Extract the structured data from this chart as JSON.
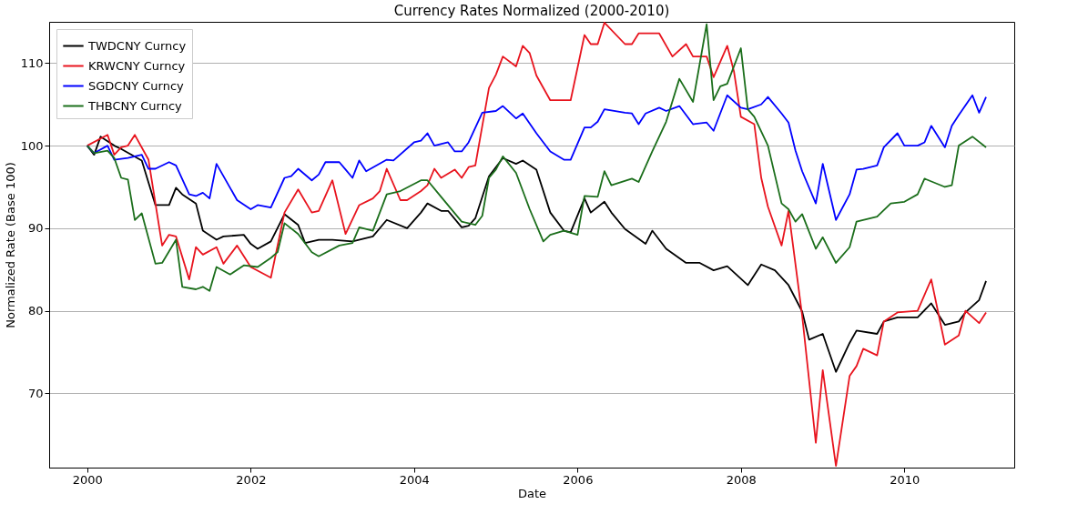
{
  "chart_data": {
    "type": "line",
    "title": "Currency Rates Normalized (2000-2010)",
    "xlabel": "Date",
    "ylabel": "Normalized Rate (Base 100)",
    "xlim": [
      "1999-07-15",
      "2011-05-07"
    ],
    "xticks": [
      {
        "value": "2000-01-01",
        "label": "2000"
      },
      {
        "value": "2002-01-01",
        "label": "2002"
      },
      {
        "value": "2004-01-01",
        "label": "2004"
      },
      {
        "value": "2006-01-01",
        "label": "2006"
      },
      {
        "value": "2008-01-01",
        "label": "2008"
      },
      {
        "value": "2010-01-01",
        "label": "2010"
      }
    ],
    "ylim": [
      61,
      115
    ],
    "yticks": [
      70,
      80,
      90,
      100,
      110
    ],
    "grid": "y",
    "legend": "top left",
    "line_style": "solid",
    "series": [
      {
        "name": "TWDCNY Curncy",
        "color": "#000000",
        "x": [
          "2000-01",
          "2000-02",
          "2000-03",
          "2000-05",
          "2000-06",
          "2000-09",
          "2000-11",
          "2001-01",
          "2001-02",
          "2001-03",
          "2001-05",
          "2001-06",
          "2001-08",
          "2001-09",
          "2001-12",
          "2002-01",
          "2002-02",
          "2002-04",
          "2002-06",
          "2002-08",
          "2002-09",
          "2002-11",
          "2003-01",
          "2003-04",
          "2003-07",
          "2003-09",
          "2003-12",
          "2004-02",
          "2004-03",
          "2004-05",
          "2004-06",
          "2004-08",
          "2004-09",
          "2004-10",
          "2004-12",
          "2005-02",
          "2005-04",
          "2005-05",
          "2005-07",
          "2005-09",
          "2005-11",
          "2005-12",
          "2006-02",
          "2006-03",
          "2006-05",
          "2006-06",
          "2006-08",
          "2006-11",
          "2006-12",
          "2007-02",
          "2007-05",
          "2007-07",
          "2007-09",
          "2007-11",
          "2008-02",
          "2008-04",
          "2008-06",
          "2008-08",
          "2008-10",
          "2008-11",
          "2009-01",
          "2009-03",
          "2009-05",
          "2009-06",
          "2009-09",
          "2009-10",
          "2009-12",
          "2010-03",
          "2010-05",
          "2010-07",
          "2010-09",
          "2010-10",
          "2010-12",
          "2011-01"
        ],
        "values": [
          100,
          98.9,
          101.1,
          100,
          99.6,
          98.2,
          92.8,
          92.8,
          94.9,
          94.1,
          93.0,
          89.7,
          88.6,
          89.0,
          89.2,
          88.1,
          87.5,
          88.4,
          91.7,
          90.4,
          88.2,
          88.6,
          88.6,
          88.4,
          89.0,
          91.0,
          90.0,
          91.9,
          93.0,
          92.1,
          92.1,
          90.1,
          90.3,
          91.2,
          96.3,
          98.5,
          97.8,
          98.2,
          97.1,
          91.9,
          89.7,
          89.5,
          93.6,
          91.9,
          93.2,
          91.9,
          89.9,
          88.1,
          89.7,
          87.5,
          85.8,
          85.8,
          84.9,
          85.4,
          83.1,
          85.6,
          84.9,
          83.1,
          79.9,
          76.5,
          77.2,
          72.6,
          76.1,
          77.6,
          77.2,
          78.7,
          79.2,
          79.2,
          80.9,
          78.3,
          78.7,
          79.8,
          81.3,
          83.6
        ]
      },
      {
        "name": "KRWCNY Curncy",
        "color": "#e8141e",
        "x": [
          "2000-01",
          "2000-04",
          "2000-05",
          "2000-06",
          "2000-07",
          "2000-08",
          "2000-10",
          "2000-12",
          "2001-01",
          "2001-02",
          "2001-04",
          "2001-05",
          "2001-06",
          "2001-08",
          "2001-09",
          "2001-11",
          "2002-01",
          "2002-04",
          "2002-06",
          "2002-08",
          "2002-10",
          "2002-11",
          "2003-01",
          "2003-03",
          "2003-05",
          "2003-07",
          "2003-08",
          "2003-09",
          "2003-11",
          "2003-12",
          "2004-02",
          "2004-03",
          "2004-04",
          "2004-05",
          "2004-07",
          "2004-08",
          "2004-09",
          "2004-10",
          "2004-12",
          "2005-01",
          "2005-02",
          "2005-04",
          "2005-05",
          "2005-06",
          "2005-07",
          "2005-09",
          "2005-12",
          "2006-02",
          "2006-03",
          "2006-04",
          "2006-05",
          "2006-08",
          "2006-09",
          "2006-10",
          "2007-01",
          "2007-03",
          "2007-05",
          "2007-06",
          "2007-08",
          "2007-09",
          "2007-11",
          "2007-12",
          "2008-01",
          "2008-03",
          "2008-04",
          "2008-05",
          "2008-07",
          "2008-08",
          "2008-10",
          "2008-12",
          "2009-01",
          "2009-03",
          "2009-05",
          "2009-06",
          "2009-07",
          "2009-09",
          "2009-10",
          "2009-12",
          "2010-03",
          "2010-05",
          "2010-07",
          "2010-09",
          "2010-10",
          "2010-12",
          "2011-01"
        ],
        "values": [
          100,
          101.3,
          98.9,
          99.8,
          100,
          101.3,
          98.3,
          87.9,
          89.2,
          89.0,
          83.8,
          87.7,
          86.8,
          87.7,
          85.7,
          87.9,
          85.3,
          84.0,
          91.9,
          94.7,
          91.9,
          92.1,
          95.8,
          89.3,
          92.8,
          93.6,
          94.5,
          97.2,
          93.4,
          93.4,
          94.5,
          95.2,
          97.2,
          96.1,
          97.1,
          96.1,
          97.4,
          97.6,
          107.0,
          108.6,
          110.8,
          109.6,
          112.1,
          111.2,
          108.5,
          105.5,
          105.5,
          113.4,
          112.3,
          112.3,
          114.9,
          112.3,
          112.3,
          113.6,
          113.6,
          110.8,
          112.3,
          110.8,
          110.8,
          108.3,
          112.1,
          109.0,
          103.5,
          102.6,
          96.1,
          92.6,
          87.9,
          92.1,
          79.4,
          64.0,
          72.8,
          61.2,
          72.1,
          73.3,
          75.4,
          74.6,
          78.7,
          79.8,
          80.0,
          83.8,
          75.9,
          77.0,
          80.0,
          78.5,
          79.8
        ]
      },
      {
        "name": "SGDCNY Curncy",
        "color": "#0000ff",
        "x": [
          "2000-01",
          "2000-02",
          "2000-04",
          "2000-05",
          "2000-07",
          "2000-09",
          "2000-10",
          "2000-11",
          "2001-01",
          "2001-02",
          "2001-04",
          "2001-05",
          "2001-06",
          "2001-07",
          "2001-08",
          "2001-11",
          "2002-01",
          "2002-02",
          "2002-04",
          "2002-06",
          "2002-07",
          "2002-08",
          "2002-10",
          "2002-11",
          "2002-12",
          "2003-02",
          "2003-03",
          "2003-04",
          "2003-05",
          "2003-06",
          "2003-09",
          "2003-10",
          "2004-01",
          "2004-02",
          "2004-03",
          "2004-04",
          "2004-06",
          "2004-07",
          "2004-08",
          "2004-09",
          "2004-11",
          "2005-01",
          "2005-02",
          "2005-04",
          "2005-05",
          "2005-07",
          "2005-09",
          "2005-11",
          "2005-12",
          "2006-02",
          "2006-03",
          "2006-04",
          "2006-05",
          "2006-08",
          "2006-09",
          "2006-10",
          "2006-11",
          "2007-01",
          "2007-02",
          "2007-04",
          "2007-06",
          "2007-08",
          "2007-09",
          "2007-11",
          "2008-01",
          "2008-02",
          "2008-04",
          "2008-05",
          "2008-07",
          "2008-08",
          "2008-09",
          "2008-10",
          "2008-12",
          "2009-01",
          "2009-03",
          "2009-05",
          "2009-06",
          "2009-07",
          "2009-09",
          "2009-10",
          "2009-12",
          "2010-01",
          "2010-03",
          "2010-04",
          "2010-05",
          "2010-07",
          "2010-08",
          "2010-09",
          "2010-11",
          "2010-12",
          "2011-01"
        ],
        "values": [
          100,
          99.1,
          100,
          98.3,
          98.5,
          98.9,
          97.2,
          97.2,
          98.0,
          97.6,
          94.1,
          93.9,
          94.3,
          93.6,
          97.8,
          93.4,
          92.3,
          92.8,
          92.5,
          96.1,
          96.3,
          97.2,
          95.8,
          96.5,
          98.0,
          98.0,
          97.1,
          96.1,
          98.2,
          96.9,
          98.3,
          98.2,
          100.4,
          100.6,
          101.5,
          100.0,
          100.4,
          99.3,
          99.3,
          100.4,
          104.0,
          104.2,
          104.8,
          103.3,
          103.9,
          101.5,
          99.3,
          98.3,
          98.3,
          102.2,
          102.2,
          102.9,
          104.4,
          104.0,
          103.9,
          102.6,
          103.9,
          104.6,
          104.2,
          104.8,
          102.6,
          102.8,
          101.8,
          106.1,
          104.6,
          104.4,
          105.0,
          105.9,
          103.9,
          102.8,
          99.4,
          96.9,
          93.0,
          97.8,
          91.0,
          94.1,
          97.1,
          97.2,
          97.6,
          99.8,
          101.5,
          100.0,
          100.0,
          100.4,
          102.4,
          99.8,
          102.4,
          103.7,
          106.1,
          104.0,
          105.9
        ]
      },
      {
        "name": "THBCNY Curncy",
        "color": "#1b6e1b",
        "x": [
          "2000-01",
          "2000-02",
          "2000-04",
          "2000-05",
          "2000-06",
          "2000-07",
          "2000-08",
          "2000-09",
          "2000-11",
          "2000-12",
          "2001-02",
          "2001-03",
          "2001-05",
          "2001-06",
          "2001-07",
          "2001-08",
          "2001-10",
          "2001-12",
          "2002-02",
          "2002-04",
          "2002-05",
          "2002-06",
          "2002-08",
          "2002-10",
          "2002-11",
          "2003-02",
          "2003-04",
          "2003-05",
          "2003-07",
          "2003-09",
          "2003-11",
          "2004-02",
          "2004-03",
          "2004-05",
          "2004-08",
          "2004-10",
          "2004-11",
          "2004-12",
          "2005-01",
          "2005-02",
          "2005-04",
          "2005-06",
          "2005-08",
          "2005-09",
          "2005-11",
          "2006-01",
          "2006-02",
          "2006-04",
          "2006-05",
          "2006-06",
          "2006-09",
          "2006-10",
          "2006-12",
          "2007-02",
          "2007-04",
          "2007-06",
          "2007-08",
          "2007-09",
          "2007-10",
          "2007-11",
          "2008-01",
          "2008-02",
          "2008-03",
          "2008-05",
          "2008-07",
          "2008-08",
          "2008-09",
          "2008-10",
          "2008-12",
          "2009-01",
          "2009-03",
          "2009-05",
          "2009-06",
          "2009-09",
          "2009-11",
          "2010-01",
          "2010-03",
          "2010-04",
          "2010-07",
          "2010-08",
          "2010-09",
          "2010-11",
          "2011-01"
        ],
        "values": [
          100,
          99.1,
          99.4,
          98.5,
          96.1,
          95.9,
          91.0,
          91.8,
          85.7,
          85.8,
          88.6,
          82.9,
          82.6,
          82.9,
          82.4,
          85.3,
          84.4,
          85.5,
          85.3,
          86.4,
          87.1,
          90.6,
          89.3,
          87.1,
          86.6,
          87.9,
          88.2,
          90.1,
          89.7,
          94.1,
          94.5,
          95.8,
          95.8,
          93.8,
          90.8,
          90.4,
          91.5,
          96.1,
          97.1,
          98.7,
          96.7,
          92.3,
          88.4,
          89.2,
          89.7,
          89.2,
          93.9,
          93.8,
          96.9,
          95.2,
          96.0,
          95.6,
          99.3,
          102.9,
          108.1,
          105.3,
          114.7,
          105.5,
          107.2,
          107.5,
          111.8,
          104.4,
          103.5,
          100.0,
          93.0,
          92.3,
          90.8,
          91.7,
          87.5,
          88.9,
          85.8,
          87.7,
          90.8,
          91.4,
          93.0,
          93.2,
          94.1,
          96.0,
          95.0,
          95.2,
          100.0,
          101.1,
          99.8
        ]
      }
    ]
  }
}
